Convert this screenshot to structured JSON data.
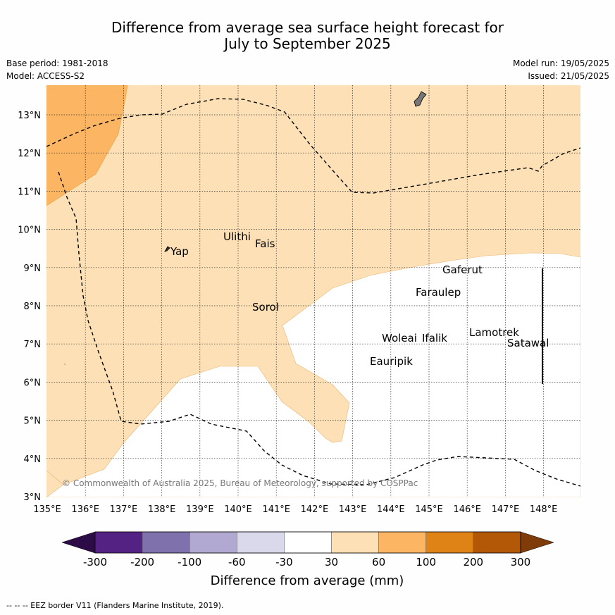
{
  "header": {
    "title_line1": "Difference from average sea surface height forecast for",
    "title_line2": "July to September 2025",
    "base_period": "Base period: 1981-2018",
    "model": "Model: ACCESS-S2",
    "model_run": "Model run: 19/05/2025",
    "issued": "Issued: 21/05/2025"
  },
  "map": {
    "lon_range": [
      135,
      149
    ],
    "lat_range": [
      2.8,
      13.8
    ],
    "lon_ticks": [
      "135°E",
      "136°E",
      "137°E",
      "138°E",
      "139°E",
      "140°E",
      "141°E",
      "142°E",
      "143°E",
      "144°E",
      "145°E",
      "146°E",
      "147°E",
      "148°E"
    ],
    "lat_ticks": [
      "3°N",
      "4°N",
      "5°N",
      "6°N",
      "7°N",
      "8°N",
      "9°N",
      "10°N",
      "11°N",
      "12°N",
      "13°N"
    ],
    "gridlines": true,
    "places": [
      "Yap",
      "Ulithi",
      "Fais",
      "Sorol",
      "Gaferut",
      "Faraulep",
      "Woleai",
      "Ifalik",
      "Lamotrek",
      "Satawal",
      "Eauripik"
    ],
    "copyright": "© Commonwealth of Australia 2025, Bureau of Meteorology, supported by COSPPac",
    "predominant_category": "30 to 60 mm",
    "northwest_category": "60 to 100 mm",
    "south_east_category": "-30 to 30 mm"
  },
  "colorbar": {
    "title": "Difference from average (mm)",
    "ticks": [
      "-300",
      "-200",
      "-100",
      "-60",
      "-30",
      "30",
      "60",
      "100",
      "200",
      "300"
    ],
    "colors": [
      "#2d0b46",
      "#542283",
      "#7f72ac",
      "#b1a9d1",
      "#d9d9eb",
      "#ffffff",
      "#fde0b6",
      "#fbb563",
      "#e08316",
      "#b35806",
      "#7f3b08"
    ]
  },
  "footer": {
    "note": "--  --  -- EEZ border V11 (Flanders Marine Institute, 2019)."
  }
}
